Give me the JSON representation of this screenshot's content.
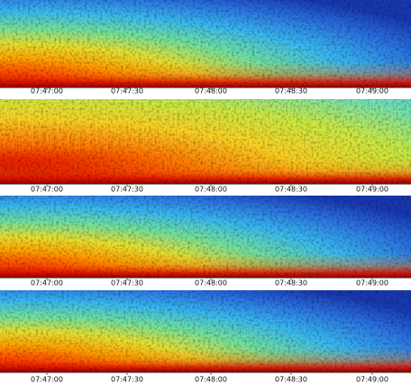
{
  "panels": [
    {
      "ticks": [
        "07:47:00",
        "07:47:30",
        "07:48:00",
        "07:48:30",
        "07:49:00"
      ]
    },
    {
      "ticks": [
        "07:47:00",
        "07:47:30",
        "07:48:00",
        "07:48:30",
        "07:49:00"
      ]
    },
    {
      "ticks": [
        "07:47:00",
        "07:47:30",
        "07:48:00",
        "07:48:30",
        "07:49:00"
      ]
    },
    {
      "ticks": [
        "07:47:00",
        "07:47:30",
        "07:48:00",
        "07:48:30",
        "07:49:00"
      ]
    }
  ]
}
